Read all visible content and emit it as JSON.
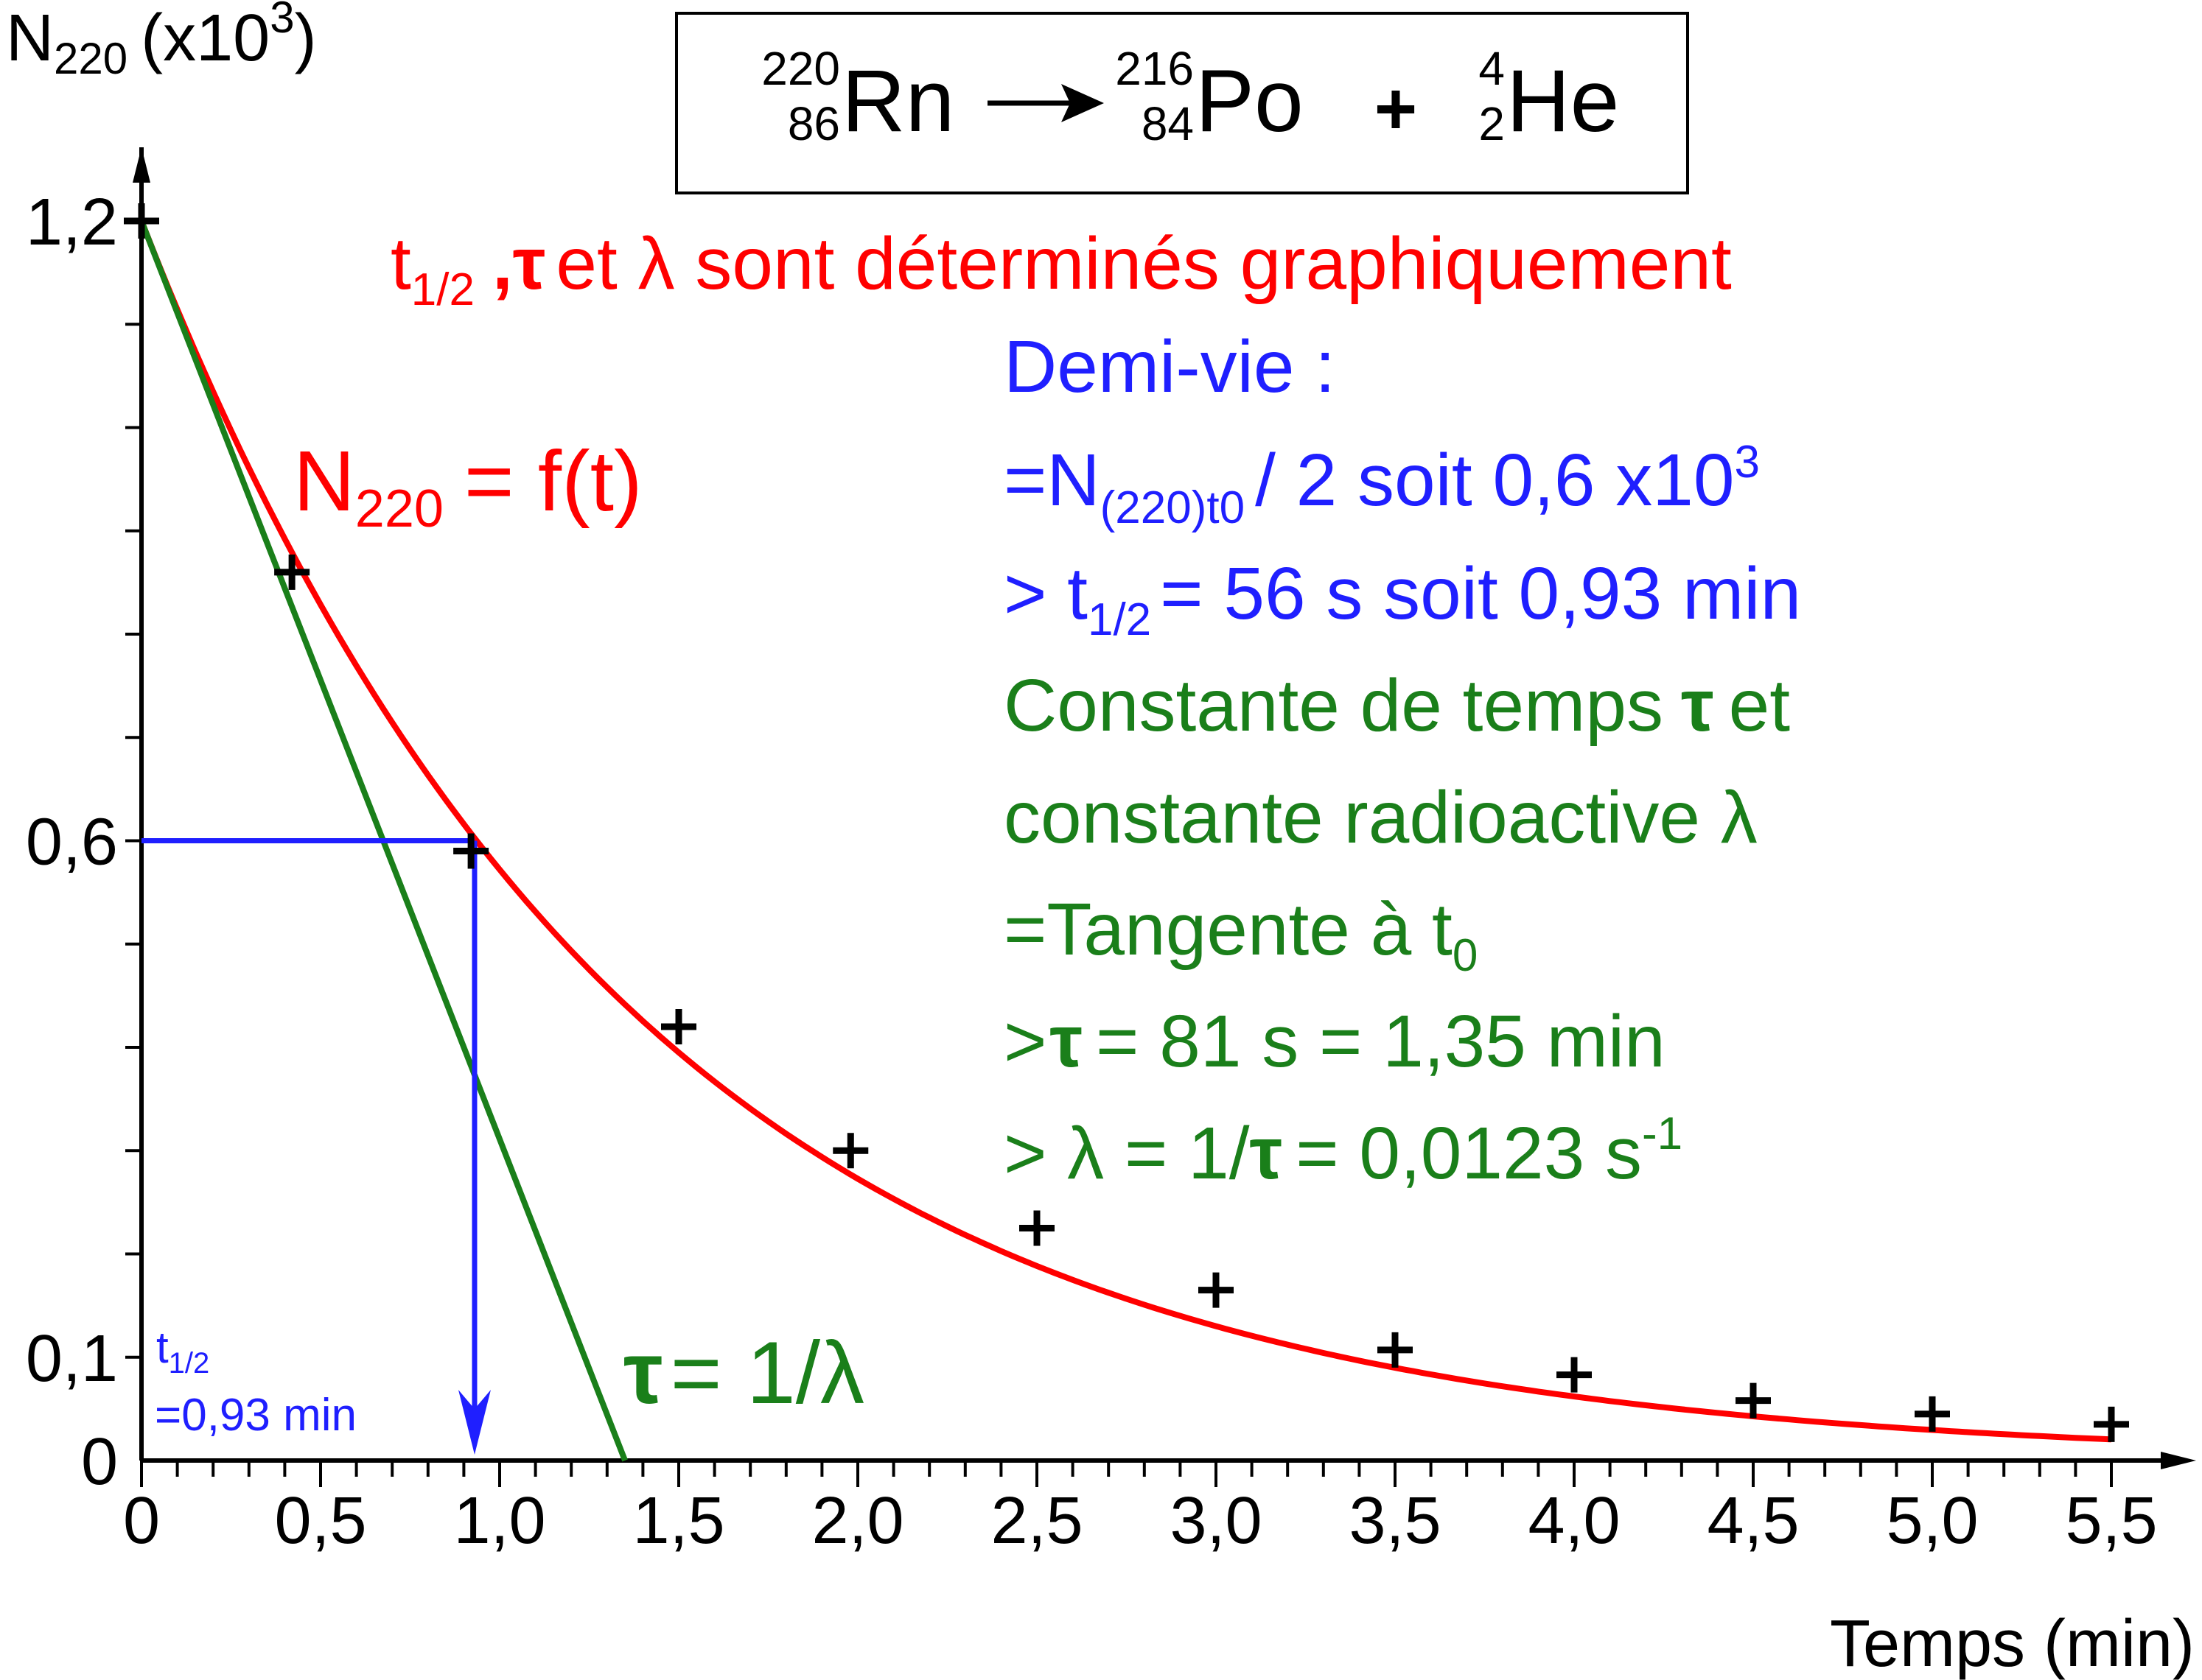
{
  "colors": {
    "curve": "#ff0000",
    "tangent": "#1a7f1a",
    "halflife": "#1f1fff",
    "points": "#000000",
    "axes": "#000000"
  },
  "equation": {
    "rn_mass": "220",
    "rn_z": "86",
    "rn": "Rn",
    "po_mass": "216",
    "po_z": "84",
    "po": "Po",
    "plus": "+",
    "he_mass": "4",
    "he_z": "2",
    "he": "He"
  },
  "notes": {
    "red_t": "t",
    "red_t_sub": "1/2",
    "red_tau_sym": ",τ",
    "red_text": "et λ sont déterminés graphiquement",
    "curve_label_n": "N",
    "curve_label_sub": "220",
    "curve_label_rest": "= f(t)",
    "demi_vie": "Demi-vie :",
    "nt0_a": "=N",
    "nt0_sub": "(220)t0",
    "nt0_b": "/ 2 soit 0,6 x10",
    "nt0_sup": "3",
    "thalf_a": "> t",
    "thalf_sub": "1/2",
    "thalf_b": "= 56 s soit 0,93 min",
    "const1_a": "Constante de temps",
    "const1_tau": "τ",
    "const1_b": "et",
    "const2": "constante radioactive λ",
    "tangente_a": "=Tangente à t",
    "tangente_sub": "0",
    "tau_a": ">",
    "tau_sym": "τ",
    "tau_b": "= 81 s = 1,35 min",
    "lambda_a": "> λ = 1/",
    "lambda_tau": "τ",
    "lambda_b": "= 0,0123 s",
    "lambda_sup": "-1",
    "tau_eq_sym": "τ",
    "tau_eq_rest": "= 1/λ",
    "thalf_marker_t": "t",
    "thalf_marker_sub": "1/2",
    "thalf_marker_val": "=0,93 min"
  },
  "chart_data": {
    "type": "scatter",
    "title": "",
    "xlabel": "Temps (min)",
    "ylabel_main": "N",
    "ylabel_sub": "220",
    "ylabel_rest": "(x10",
    "ylabel_sup": "3",
    "ylabel_close": ")",
    "xlim": [
      0,
      5.6
    ],
    "ylim": [
      0,
      1.2
    ],
    "x_ticks": [
      {
        "v": 0,
        "label": "0"
      },
      {
        "v": 0.5,
        "label": "0,5"
      },
      {
        "v": 1.0,
        "label": "1,0"
      },
      {
        "v": 1.5,
        "label": "1,5"
      },
      {
        "v": 2.0,
        "label": "2,0"
      },
      {
        "v": 2.5,
        "label": "2,5"
      },
      {
        "v": 3.0,
        "label": "3,0"
      },
      {
        "v": 3.5,
        "label": "3,5"
      },
      {
        "v": 4.0,
        "label": "4,0"
      },
      {
        "v": 4.5,
        "label": "4,5"
      },
      {
        "v": 5.0,
        "label": "5,0"
      },
      {
        "v": 5.5,
        "label": "5,5"
      }
    ],
    "y_ticks": [
      {
        "v": 0,
        "label": "0"
      },
      {
        "v": 0.1,
        "label": "0,1"
      },
      {
        "v": 0.6,
        "label": "0,6"
      },
      {
        "v": 1.2,
        "label": "1,2"
      }
    ],
    "series": [
      {
        "x": [
          0,
          0.42,
          0.92,
          1.5,
          1.98,
          2.5,
          3.0,
          3.5,
          4.0,
          4.5,
          5.0,
          5.5
        ],
        "y": [
          1.2,
          0.86,
          0.59,
          0.42,
          0.3,
          0.225,
          0.165,
          0.107,
          0.083,
          0.058,
          0.045,
          0.035
        ]
      }
    ],
    "fit_curve": {
      "type": "exponential",
      "N0": 1.2,
      "tau_min": 1.35
    },
    "tangent": {
      "x0": 0,
      "y0": 1.2,
      "x_intercept": 1.35
    },
    "half_life": {
      "t": 0.93,
      "N": 0.6
    }
  }
}
